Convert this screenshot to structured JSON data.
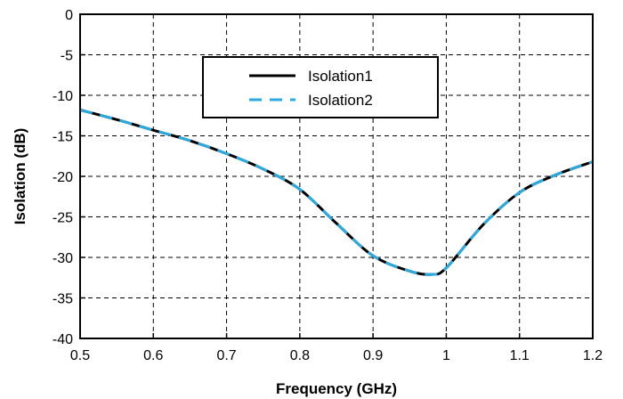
{
  "chart_data": {
    "type": "line",
    "title": "",
    "xlabel": "Frequency (GHz)",
    "ylabel": "Isolation (dB)",
    "xlim": [
      0.5,
      1.2
    ],
    "ylim": [
      -40,
      0
    ],
    "x_ticks": [
      "0.5",
      "0.6",
      "0.7",
      "0.8",
      "0.9",
      "1",
      "1.1",
      "1.2"
    ],
    "y_ticks": [
      "0",
      "-5",
      "-10",
      "-15",
      "-20",
      "-25",
      "-30",
      "-35",
      "-40"
    ],
    "grid": true,
    "legend_position": "top-center",
    "series": [
      {
        "name": "Isolation1",
        "color": "#000000",
        "style": "solid",
        "x": [
          0.5,
          0.55,
          0.6,
          0.65,
          0.7,
          0.75,
          0.8,
          0.85,
          0.9,
          0.95,
          0.98,
          1.0,
          1.05,
          1.1,
          1.15,
          1.2
        ],
        "y": [
          -11.8,
          -13.0,
          -14.3,
          -15.6,
          -17.2,
          -19.1,
          -21.6,
          -25.8,
          -29.8,
          -31.7,
          -32.1,
          -31.3,
          -26.0,
          -22.0,
          -19.8,
          -18.2
        ]
      },
      {
        "name": "Isolation2",
        "color": "#29aae1",
        "style": "dashed",
        "x": [
          0.5,
          0.55,
          0.6,
          0.65,
          0.7,
          0.75,
          0.8,
          0.85,
          0.9,
          0.95,
          0.98,
          1.0,
          1.05,
          1.1,
          1.15,
          1.2
        ],
        "y": [
          -11.8,
          -13.0,
          -14.3,
          -15.6,
          -17.2,
          -19.1,
          -21.6,
          -25.8,
          -29.8,
          -31.7,
          -32.1,
          -31.3,
          -26.0,
          -22.0,
          -19.8,
          -18.2
        ]
      }
    ]
  }
}
